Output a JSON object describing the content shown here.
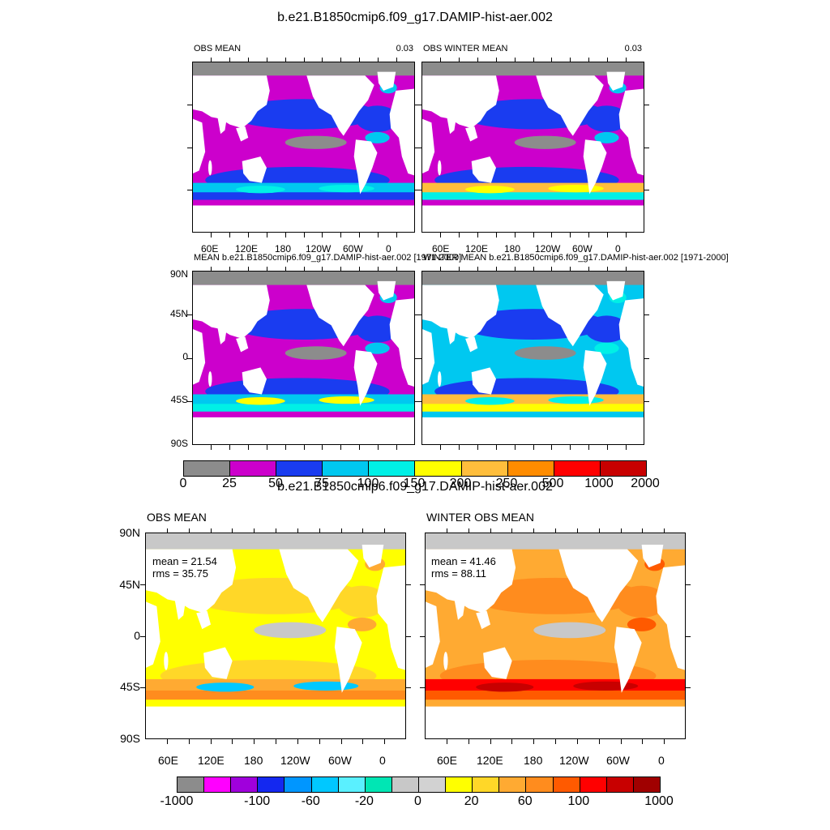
{
  "figure1": {
    "title": "b.e21.B1850cmip6.f09_g17.DAMIP-hist-aer.002",
    "panels": [
      {
        "left_title": "OBS MEAN",
        "right_title": "0.03",
        "style": "obs"
      },
      {
        "left_title": "OBS WINTER MEAN",
        "right_title": "0.03",
        "style": "obswinter"
      },
      {
        "left_title": "MEAN b.e21.B1850cmip6.f09_g17.DAMIP-hist-aer.002 [1971-2000]",
        "right_title": "",
        "style": "mod"
      },
      {
        "left_title": "WINTER MEAN b.e21.B1850cmip6.f09_g17.DAMIP-hist-aer.002 [1971-2000]",
        "right_title": "",
        "style": "modwinter"
      }
    ],
    "lon_ticks": [
      "60E",
      "120E",
      "180",
      "120W",
      "60W",
      "0"
    ],
    "lat_ticks": [
      "90N",
      "45N",
      "0",
      "45S",
      "90S"
    ],
    "colorbar": {
      "colors": [
        "#8c8c8c",
        "#cc00cc",
        "#1a3cf0",
        "#00c8f0",
        "#00f0e6",
        "#ffff00",
        "#ffbe3c",
        "#ff8c00",
        "#ff0000",
        "#c80000"
      ],
      "labels": [
        "0",
        "25",
        "50",
        "75",
        "100",
        "150",
        "200",
        "250",
        "500",
        "1000",
        "2000"
      ]
    }
  },
  "figure2": {
    "title": "b.e21.B1850cmip6.f09_g17.DAMIP-hist-aer.002",
    "panels": [
      {
        "left_title": "OBS MEAN",
        "mean": "mean = 21.54",
        "rms": "rms = 35.75",
        "style": "diff"
      },
      {
        "left_title": "WINTER OBS MEAN",
        "mean": "mean = 41.46",
        "rms": "rms = 88.11",
        "style": "diffwinter"
      }
    ],
    "lon_ticks": [
      "60E",
      "120E",
      "180",
      "120W",
      "60W",
      "0"
    ],
    "lat_ticks": [
      "90N",
      "45N",
      "0",
      "45S",
      "90S"
    ],
    "colorbar": {
      "colors": [
        "#8c8c8c",
        "#ff00ff",
        "#a000dc",
        "#1428f0",
        "#0096ff",
        "#00c8ff",
        "#5af0ff",
        "#00e6b4",
        "#c8c8c8",
        "#d2d2d2",
        "#ffff00",
        "#ffd728",
        "#ffaa32",
        "#ff8c1e",
        "#ff5a00",
        "#ff0000",
        "#c80000",
        "#a00000"
      ],
      "labels": [
        "-1000",
        "-100",
        "-60",
        "-20",
        "0",
        "20",
        "60",
        "100",
        "1000"
      ]
    }
  },
  "chart_data": [
    {
      "type": "heatmap",
      "title": "b.e21.B1850cmip6.f09_g17.DAMIP-hist-aer.002",
      "subplots": [
        "OBS MEAN",
        "OBS WINTER MEAN",
        "MEAN b.e21.B1850cmip6.f09_g17.DAMIP-hist-aer.002 [1971-2000]",
        "WINTER MEAN b.e21.B1850cmip6.f09_g17.DAMIP-hist-aer.002 [1971-2000]"
      ],
      "x_ticks": [
        "60E",
        "120E",
        "180",
        "120W",
        "60W",
        "0"
      ],
      "y_ticks": [
        "90N",
        "45N",
        "0",
        "45S",
        "90S"
      ],
      "colorbar_levels": [
        0,
        25,
        50,
        75,
        100,
        150,
        200,
        250,
        500,
        1000,
        2000
      ],
      "grid": false
    },
    {
      "type": "heatmap",
      "title": "b.e21.B1850cmip6.f09_g17.DAMIP-hist-aer.002",
      "subplots": [
        "OBS MEAN",
        "WINTER OBS MEAN"
      ],
      "stats": [
        {
          "mean": 21.54,
          "rms": 35.75
        },
        {
          "mean": 41.46,
          "rms": 88.11
        }
      ],
      "x_ticks": [
        "60E",
        "120E",
        "180",
        "120W",
        "60W",
        "0"
      ],
      "y_ticks": [
        "90N",
        "45N",
        "0",
        "45S",
        "90S"
      ],
      "colorbar_levels": [
        -1000,
        -100,
        -60,
        -20,
        0,
        20,
        60,
        100,
        1000
      ],
      "grid": false
    }
  ]
}
